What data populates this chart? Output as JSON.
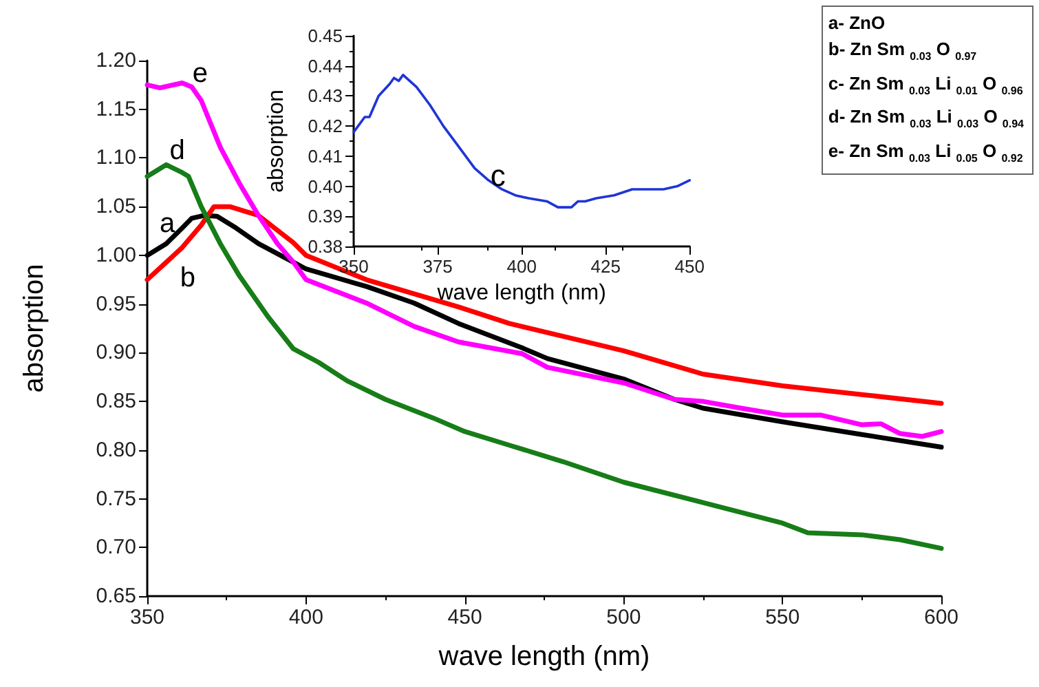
{
  "chart_data": [
    {
      "type": "line",
      "xlabel": "wave length (nm)",
      "ylabel": "absorption",
      "marker": "none",
      "xlim": [
        350,
        600
      ],
      "xticks": [
        350,
        400,
        450,
        500,
        550,
        600
      ],
      "ylim": [
        0.65,
        1.2
      ],
      "yticks": [
        {
          "value": 0.65,
          "label": "0.65"
        },
        {
          "value": 0.7,
          "label": "0.70"
        },
        {
          "value": 0.75,
          "label": "0.75"
        },
        {
          "value": 0.8,
          "label": "0.80"
        },
        {
          "value": 0.85,
          "label": "0.85"
        },
        {
          "value": 0.9,
          "label": "0.90"
        },
        {
          "value": 0.95,
          "label": "0.95"
        },
        {
          "value": 1.0,
          "label": "1.00"
        },
        {
          "value": 1.05,
          "label": "1.05"
        },
        {
          "value": 1.1,
          "label": "1.10"
        },
        {
          "value": 1.15,
          "label": "1.15"
        },
        {
          "value": 1.2,
          "label": "1.20"
        }
      ],
      "series": [
        {
          "name": "a",
          "color": "#000000",
          "x": [
            350,
            356,
            361,
            364,
            368,
            372,
            378,
            385,
            396,
            400,
            419,
            434,
            448,
            468,
            476,
            500,
            516,
            525,
            550,
            575,
            600
          ],
          "values": [
            1.0,
            1.012,
            1.028,
            1.038,
            1.041,
            1.04,
            1.028,
            1.012,
            0.993,
            0.986,
            0.968,
            0.951,
            0.93,
            0.905,
            0.894,
            0.873,
            0.852,
            0.843,
            0.829,
            0.816,
            0.803
          ]
        },
        {
          "name": "b",
          "color": "#ff0000",
          "x": [
            350,
            355,
            361,
            367,
            371,
            376,
            380,
            385,
            396,
            400,
            419,
            448,
            464,
            500,
            525,
            550,
            575,
            600
          ],
          "values": [
            0.975,
            0.99,
            1.008,
            1.031,
            1.05,
            1.05,
            1.046,
            1.041,
            1.013,
            1.0,
            0.975,
            0.947,
            0.93,
            0.902,
            0.878,
            0.866,
            0.857,
            0.848
          ]
        },
        {
          "name": "d",
          "color": "#177d17",
          "x": [
            350,
            356,
            361,
            363,
            367,
            373,
            379,
            388,
            396,
            404,
            413,
            425,
            440,
            450,
            464,
            481,
            500,
            525,
            550,
            558,
            575,
            587,
            600
          ],
          "values": [
            1.081,
            1.093,
            1.085,
            1.081,
            1.05,
            1.012,
            0.979,
            0.937,
            0.904,
            0.89,
            0.871,
            0.852,
            0.833,
            0.819,
            0.805,
            0.788,
            0.767,
            0.746,
            0.725,
            0.715,
            0.713,
            0.708,
            0.699
          ]
        },
        {
          "name": "e",
          "color": "#ff00ff",
          "x": [
            350,
            354,
            361,
            364,
            367,
            373,
            379,
            385,
            391,
            396,
            400,
            419,
            434,
            448,
            468,
            476,
            500,
            516,
            525,
            537,
            550,
            562,
            575,
            581,
            587,
            594,
            600
          ],
          "values": [
            1.175,
            1.172,
            1.177,
            1.173,
            1.159,
            1.111,
            1.074,
            1.041,
            1.012,
            0.993,
            0.975,
            0.951,
            0.927,
            0.911,
            0.899,
            0.885,
            0.869,
            0.852,
            0.85,
            0.843,
            0.836,
            0.836,
            0.826,
            0.827,
            0.817,
            0.814,
            0.819
          ]
        }
      ],
      "annotations": [
        "a- ZnO",
        "b- Zn Sm $_{0.03}$ O $_{0.97}$",
        "c- Zn Sm $_{0.03}$ Li $_{0.01}$ O $_{0.96}$",
        "d- Zn Sm $_{0.03}$ Li $_{0.03}$ O $_{0.94}$",
        "e- Zn Sm $_{0.03}$ Li $_{0.05}$ O $_{0.92}$"
      ]
    },
    {
      "type": "line",
      "xlabel": "wave length (nm)",
      "ylabel": "absorption",
      "marker": "none",
      "xlim": [
        350,
        450
      ],
      "xticks": [
        350,
        375,
        400,
        425,
        450
      ],
      "ylim": [
        0.38,
        0.45
      ],
      "yticks": [
        {
          "value": 0.38,
          "label": "0.38"
        },
        {
          "value": 0.39,
          "label": "0.39"
        },
        {
          "value": 0.4,
          "label": "0.40"
        },
        {
          "value": 0.41,
          "label": "0.41"
        },
        {
          "value": 0.42,
          "label": "0.42"
        },
        {
          "value": 0.43,
          "label": "0.43"
        },
        {
          "value": 0.44,
          "label": "0.44"
        },
        {
          "value": 0.45,
          "label": "0.45"
        }
      ],
      "series": [
        {
          "name": "c",
          "color": "#1f35d6",
          "x": [
            350,
            353.3,
            354.7,
            357.4,
            360.7,
            362,
            363.4,
            364.7,
            368.7,
            372.7,
            376.7,
            380.7,
            386,
            390.1,
            394.1,
            398.1,
            402.1,
            407.5,
            410.8,
            414.8,
            416.8,
            418.9,
            422.2,
            427.5,
            432.9,
            442.2,
            446.3,
            450
          ],
          "values": [
            0.418,
            0.423,
            0.423,
            0.43,
            0.434,
            0.436,
            0.435,
            0.437,
            0.433,
            0.427,
            0.42,
            0.414,
            0.406,
            0.402,
            0.399,
            0.397,
            0.396,
            0.395,
            0.393,
            0.393,
            0.395,
            0.395,
            0.396,
            0.397,
            0.399,
            0.399,
            0.4,
            0.402
          ]
        }
      ]
    }
  ]
}
